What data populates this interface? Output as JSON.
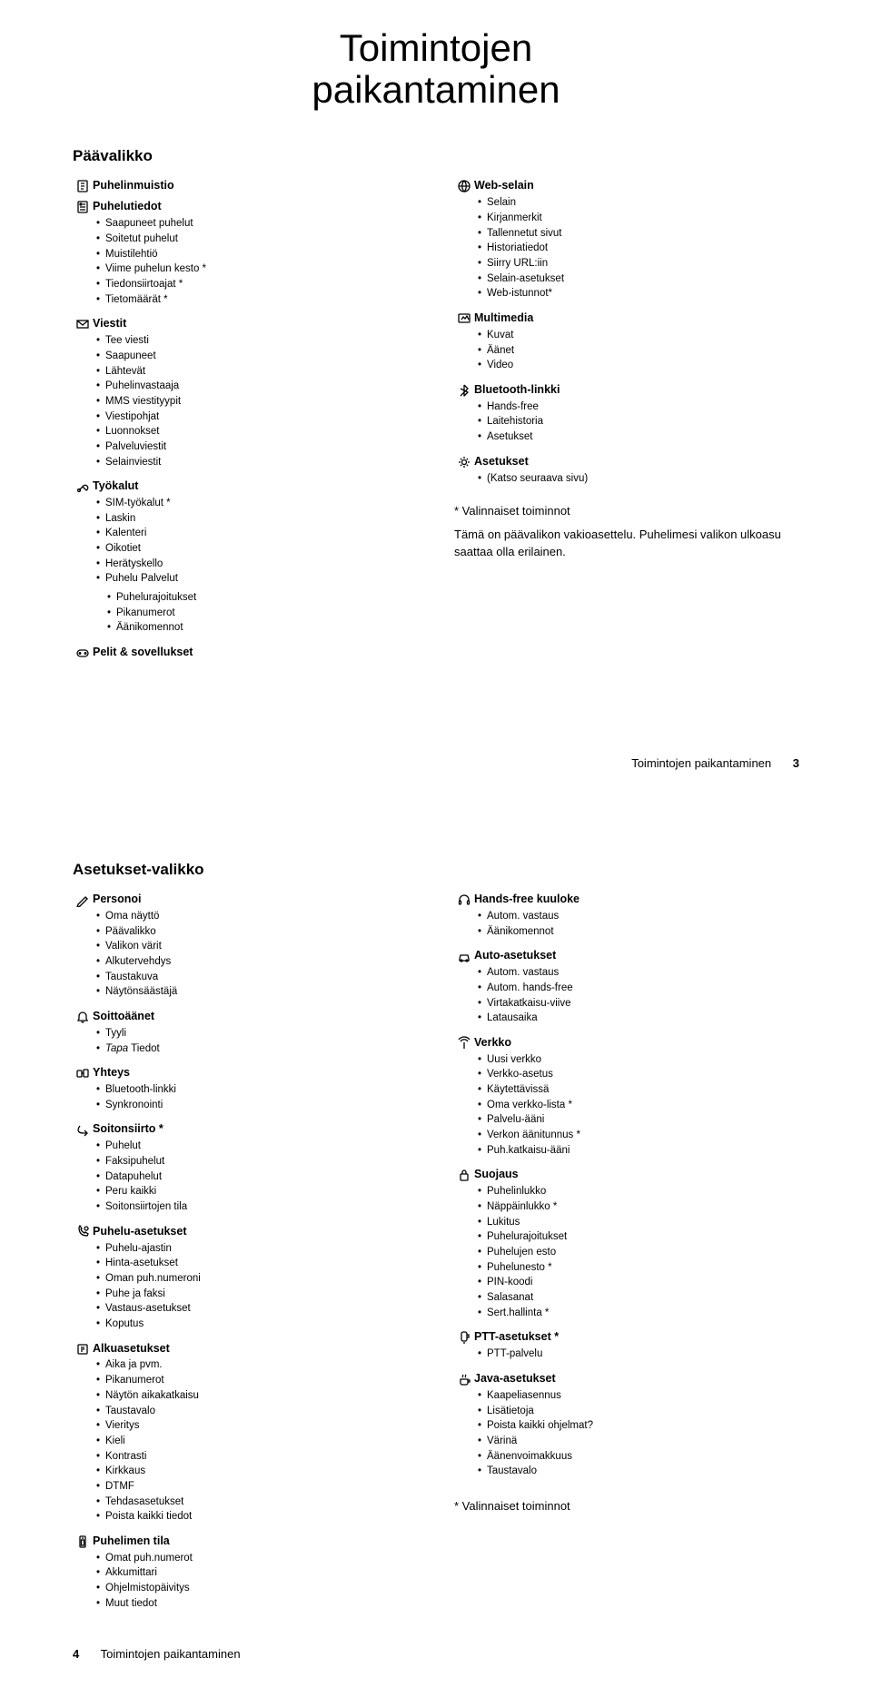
{
  "title_line1": "Toimintojen",
  "title_line2": "paikantaminen",
  "page3": {
    "section_title": "Päävalikko",
    "cols": [
      [
        {
          "icon": "phonebook",
          "label": "Puhelinmuistio",
          "items": []
        },
        {
          "icon": "callinfo",
          "label": "Puhelutiedot",
          "items": [
            "Saapuneet puhelut",
            "Soitetut puhelut",
            "Muistilehtiö",
            "Viime puhelun kesto *",
            "Tiedonsiirtoajat *",
            "Tietomäärät *"
          ]
        },
        {
          "icon": "envelope",
          "label": "Viestit",
          "items": [
            "Tee viesti",
            "Saapuneet",
            "Lähtevät",
            "Puhelinvastaaja",
            "MMS viestityypit",
            "Viestipohjat",
            "Luonnokset",
            "Palveluviestit",
            "Selainviestit"
          ]
        },
        {
          "icon": "tools",
          "label": "Työkalut",
          "items": [
            "SIM-työkalut *",
            "Laskin",
            "Kalenteri",
            "Oikotiet",
            "Herätyskello",
            "Puhelu Palvelut"
          ],
          "subitems": [
            "Puhelurajoitukset",
            "Pikanumerot",
            "Äänikomennot"
          ]
        },
        {
          "icon": "games",
          "label": "Pelit & sovellukset",
          "items": []
        }
      ],
      [
        {
          "icon": "globe",
          "label": "Web-selain",
          "items": [
            "Selain",
            "Kirjanmerkit",
            "Tallennetut sivut",
            "Historiatiedot",
            "Siirry URL:iin",
            "Selain-asetukset",
            "Web-istunnot*"
          ]
        },
        {
          "icon": "multimedia",
          "label": "Multimedia",
          "items": [
            "Kuvat",
            "Äänet",
            "Video"
          ]
        },
        {
          "icon": "bluetooth",
          "label": "Bluetooth-linkki",
          "items": [
            "Hands-free",
            "Laitehistoria",
            "Asetukset"
          ]
        },
        {
          "icon": "settings",
          "label": "Asetukset",
          "items": [
            "(Katso seuraava sivu)"
          ]
        }
      ]
    ],
    "notes_star": "* Valinnaiset toiminnot",
    "notes_body": "Tämä on päävalikon vakioasettelu. Puhelimesi valikon ulkoasu saattaa olla erilainen.",
    "footer_text": "Toimintojen paikantaminen",
    "footer_page": "3"
  },
  "page4": {
    "section_title": "Asetukset-valikko",
    "cols": [
      [
        {
          "icon": "personalize",
          "label": "Personoi",
          "items": [
            "Oma näyttö",
            "Päävalikko",
            "Valikon värit",
            "Alkutervehdys",
            "Taustakuva",
            "Näytönsäästäjä"
          ]
        },
        {
          "icon": "ringstyle",
          "label": "Soittoäänet",
          "items": [
            "Tyyli",
            "<i>Tapa</i> Tiedot"
          ]
        },
        {
          "icon": "connection",
          "label": "Yhteys",
          "items": [
            "Bluetooth-linkki",
            "Synkronointi"
          ]
        },
        {
          "icon": "forward",
          "label": "Soitonsiirto *",
          "items": [
            "Puhelut",
            "Faksipuhelut",
            "Datapuhelut",
            "Peru kaikki",
            "Soitonsiirtojen tila"
          ]
        },
        {
          "icon": "callsettings",
          "label": "Puhelu-asetukset",
          "items": [
            "Puhelu-ajastin",
            "Hinta-asetukset",
            "Oman puh.numeroni",
            "Puhe ja faksi",
            "Vastaus-asetukset",
            "Koputus"
          ]
        },
        {
          "icon": "initial",
          "label": "Alkuasetukset",
          "items": [
            "Aika ja pvm.",
            "Pikanumerot",
            "Näytön aikakatkaisu",
            "Taustavalo",
            "Vieritys",
            "Kieli",
            "Kontrasti",
            "Kirkkaus",
            "DTMF",
            "Tehdasasetukset",
            "Poista kaikki tiedot"
          ]
        },
        {
          "icon": "phonestatus",
          "label": "Puhelimen tila",
          "items": [
            "Omat puh.numerot",
            "Akkumittari",
            "Ohjelmistopäivitys",
            "Muut tiedot"
          ]
        }
      ],
      [
        {
          "icon": "headset",
          "label": "Hands-free kuuloke",
          "items": [
            "Autom. vastaus",
            "Äänikomennot"
          ]
        },
        {
          "icon": "car",
          "label": "Auto-asetukset",
          "items": [
            "Autom. vastaus",
            "Autom. hands-free",
            "Virtakatkaisu-viive",
            "Latausaika"
          ]
        },
        {
          "icon": "network",
          "label": "Verkko",
          "items": [
            "Uusi verkko",
            "Verkko-asetus",
            "Käytettävissä",
            "Oma verkko-lista *",
            "Palvelu-ääni",
            "Verkon äänitunnus *",
            "Puh.katkaisu-ääni"
          ]
        },
        {
          "icon": "security",
          "label": "Suojaus",
          "items": [
            "Puhelinlukko",
            "Näppäinlukko *",
            "Lukitus",
            "Puhelurajoitukset",
            "Puhelujen esto",
            "Puhelunesto *",
            "PIN-koodi",
            "Salasanat",
            "Sert.hallinta *"
          ]
        },
        {
          "icon": "ptt",
          "label": "PTT-asetukset *",
          "items": [
            "PTT-palvelu"
          ]
        },
        {
          "icon": "java",
          "label": "Java-asetukset",
          "items": [
            "Kaapeliasennus",
            "Lisätietoja",
            "Poista kaikki ohjelmat?",
            "Värinä",
            "Äänenvoimakkuus",
            "Taustavalo"
          ]
        }
      ]
    ],
    "note_inline": "* Valinnaiset toiminnot",
    "footer_page": "4",
    "footer_text": "Toimintojen paikantaminen"
  },
  "icons_alt": {
    "phonebook": "phonebook-icon",
    "callinfo": "call-info-icon",
    "envelope": "messages-icon",
    "tools": "tools-icon",
    "games": "games-icon",
    "globe": "web-icon",
    "multimedia": "multimedia-icon",
    "bluetooth": "bluetooth-icon",
    "settings": "settings-icon",
    "personalize": "personalize-icon",
    "ringstyle": "ringstyle-icon",
    "connection": "connection-icon",
    "forward": "call-forward-icon",
    "callsettings": "call-settings-icon",
    "initial": "initial-setup-icon",
    "phonestatus": "phone-status-icon",
    "headset": "headset-icon",
    "car": "car-settings-icon",
    "network": "network-icon",
    "security": "security-icon",
    "ptt": "ptt-icon",
    "java": "java-settings-icon"
  }
}
